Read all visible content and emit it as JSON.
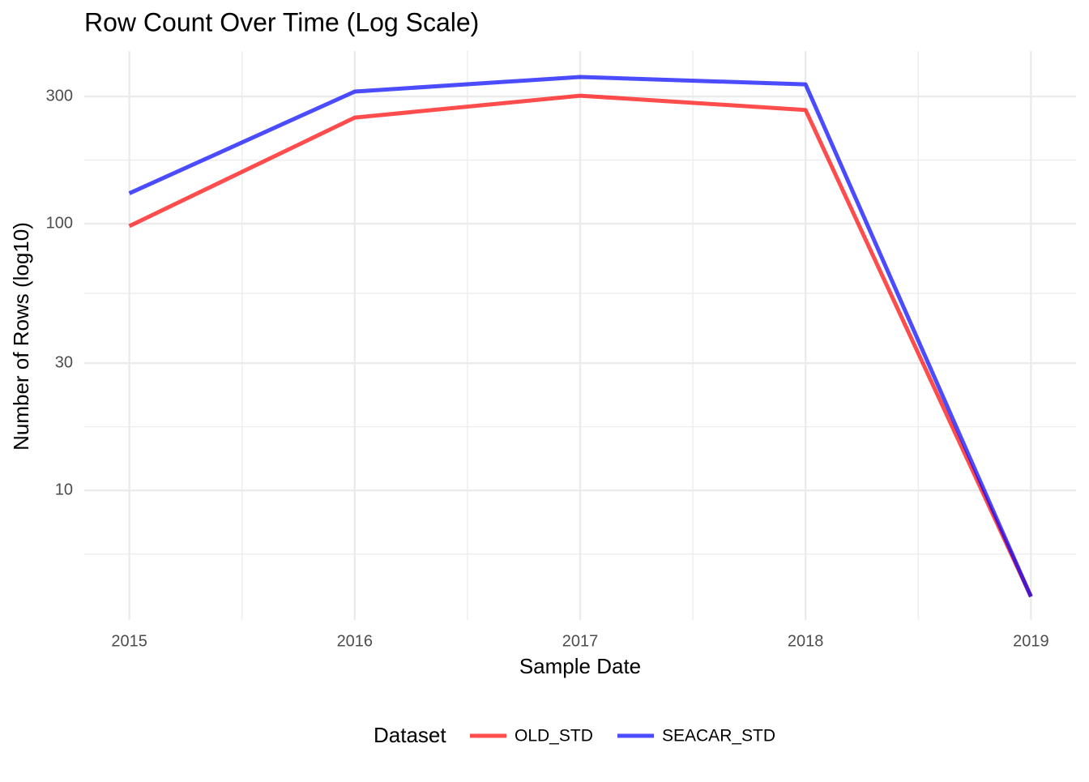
{
  "chart_data": {
    "type": "line",
    "title": "Row Count Over Time (Log Scale)",
    "x_label": "Sample Date",
    "y_label": "Number of Rows (log10)",
    "x": [
      2015,
      2016,
      2017,
      2018,
      2019
    ],
    "series": [
      {
        "name": "OLD_STD",
        "color": "#ff0000",
        "values": [
          98,
          250,
          302,
          267,
          4
        ]
      },
      {
        "name": "SEACAR_STD",
        "color": "#0000ff",
        "values": [
          130,
          313,
          355,
          333,
          4
        ]
      }
    ],
    "opacity": 0.7,
    "xlim": [
      2014.8,
      2019.2
    ],
    "xticks": [
      2015,
      2016,
      2017,
      2018,
      2019
    ],
    "ylim": [
      3.27,
      444
    ],
    "yticks": [
      10,
      30,
      100,
      300
    ],
    "log_y": true,
    "grid": true,
    "legend_title": "Dataset",
    "legend_position": "bottom"
  }
}
